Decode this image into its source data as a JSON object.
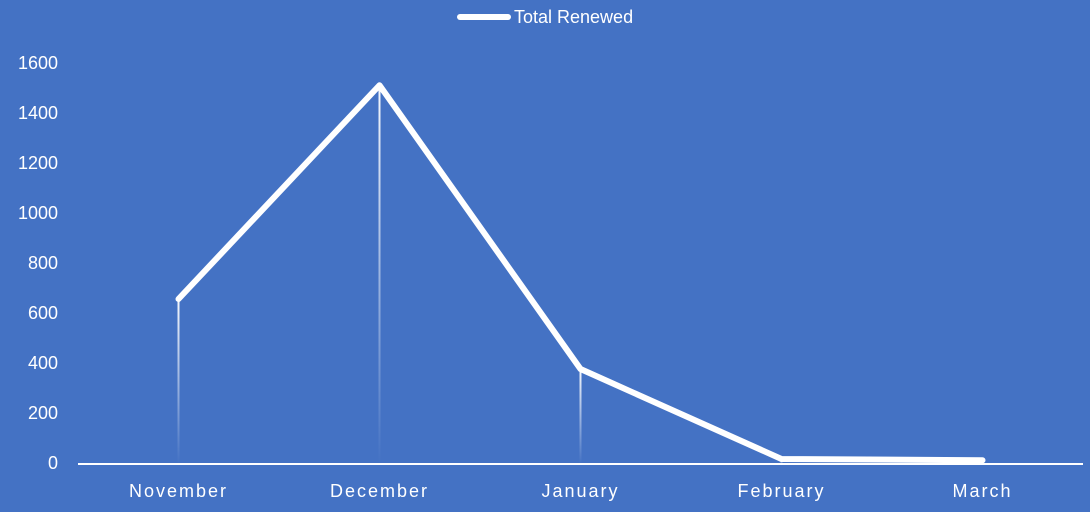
{
  "chart_data": {
    "type": "line",
    "categories": [
      "November",
      "December",
      "January",
      "February",
      "March"
    ],
    "series": [
      {
        "name": "Total Renewed",
        "color": "#ffffff",
        "values": [
          660,
          1515,
          380,
          20,
          15
        ]
      }
    ],
    "ylim": [
      0,
      1600
    ],
    "yticks": [
      0,
      200,
      400,
      600,
      800,
      1000,
      1200,
      1400,
      1600
    ],
    "drop_lines": true,
    "legend": "top"
  }
}
